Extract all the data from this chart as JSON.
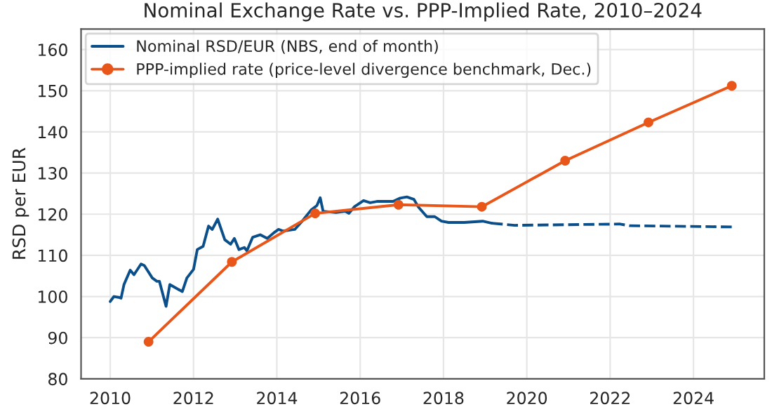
{
  "chart_data": {
    "type": "line",
    "title": "Nominal Exchange Rate vs. PPP-Implied Rate, 2010–2024",
    "ylabel": "RSD per EUR",
    "xlim": [
      2009.3,
      2025.7
    ],
    "xticks": [
      2010,
      2012,
      2014,
      2016,
      2018,
      2020,
      2022,
      2024
    ],
    "ylim": [
      80,
      165
    ],
    "yticks": [
      80,
      90,
      100,
      110,
      120,
      130,
      140,
      150,
      160
    ],
    "grid": true,
    "legend": "top left",
    "series": [
      {
        "name": "Nominal RSD/EUR (NBS, end of month)",
        "color": "#0b4f8a",
        "line_style": "solid",
        "marker": "none",
        "x": [
          2010.0,
          2010.09,
          2010.2,
          2010.26,
          2010.33,
          2010.48,
          2010.57,
          2010.74,
          2010.82,
          2011.01,
          2011.12,
          2011.18,
          2011.34,
          2011.43,
          2011.73,
          2011.84,
          2012.0,
          2012.09,
          2012.23,
          2012.36,
          2012.45,
          2012.58,
          2012.75,
          2012.89,
          2012.98,
          2013.09,
          2013.22,
          2013.28,
          2013.42,
          2013.6,
          2013.77,
          2013.93,
          2014.04,
          2014.15,
          2014.43,
          2014.6,
          2014.82,
          2014.96,
          2015.04,
          2015.11,
          2015.42,
          2015.64,
          2015.73,
          2015.86,
          2016.08,
          2016.24,
          2016.4,
          2016.79,
          2016.96,
          2017.12,
          2017.29,
          2017.4,
          2017.6,
          2017.79,
          2017.95,
          2018.12,
          2018.5,
          2018.94,
          2019.16
        ],
        "values": [
          98.8,
          100,
          99.8,
          99.6,
          102.9,
          106.4,
          105.3,
          107.9,
          107.5,
          104.5,
          103.7,
          103.7,
          97.6,
          102.9,
          101.2,
          104.5,
          106.6,
          111.4,
          112.2,
          117.1,
          116.3,
          118.8,
          113.8,
          112.7,
          114.1,
          111.4,
          111.9,
          111.1,
          114.4,
          115.0,
          114.1,
          115.5,
          116.3,
          115.9,
          116.3,
          118.2,
          121.0,
          122.1,
          124.0,
          120.7,
          120.4,
          120.7,
          120.2,
          121.8,
          123.3,
          122.8,
          123.1,
          123.1,
          123.9,
          124.2,
          123.6,
          121.7,
          119.4,
          119.4,
          118.3,
          118.0,
          118.0,
          118.3,
          117.8
        ]
      },
      {
        "color": "#0b4f8a",
        "line_style": "dashed",
        "marker": "none",
        "x": [
          2019.16,
          2019.71,
          2022.24,
          2022.46,
          2025.0
        ],
        "values": [
          117.8,
          117.3,
          117.6,
          117.2,
          116.9
        ]
      },
      {
        "name": "PPP-implied rate (price-level divergence benchmark, Dec.)",
        "color": "#e8561a",
        "line_style": "solid",
        "marker": "circle",
        "x": [
          2010.92,
          2012.92,
          2014.92,
          2016.92,
          2018.92,
          2020.92,
          2022.92,
          2024.92
        ],
        "values": [
          89.0,
          108.4,
          120.2,
          122.3,
          121.8,
          133.0,
          142.3,
          151.2
        ]
      }
    ]
  }
}
